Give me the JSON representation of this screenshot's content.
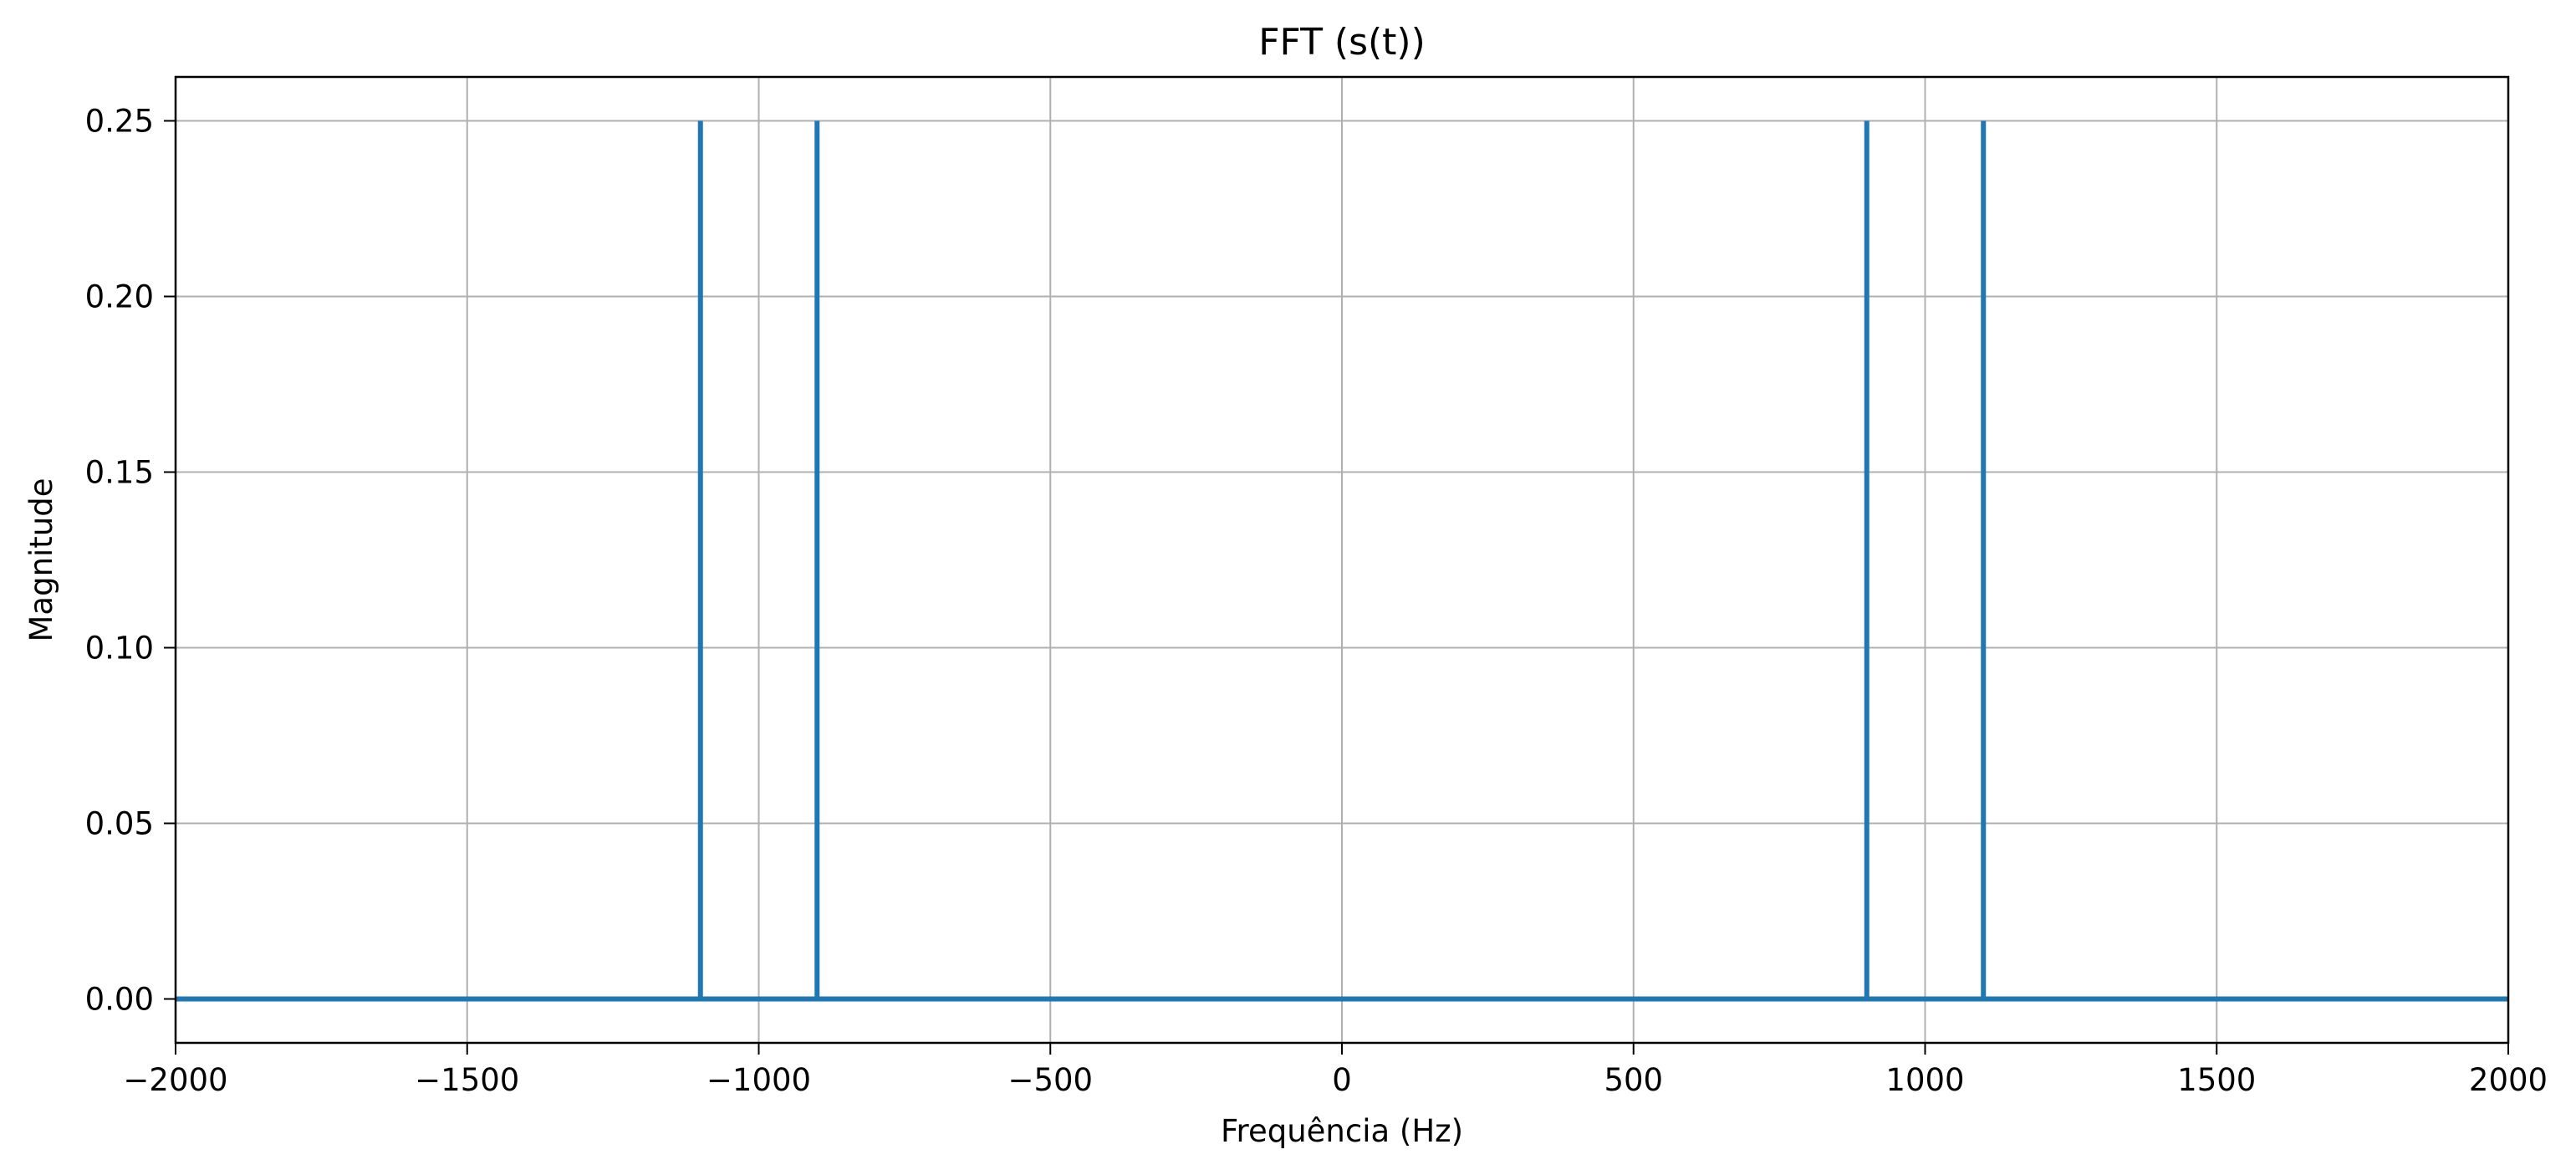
{
  "chart_data": {
    "type": "line",
    "title": "FFT (s(t))",
    "xlabel": "Frequência (Hz)",
    "ylabel": "Magnitude",
    "xlim": [
      -2000,
      2000
    ],
    "ylim": [
      -0.0125,
      0.2625
    ],
    "xticks": [
      -2000,
      -1500,
      -1000,
      -500,
      0,
      500,
      1000,
      1500,
      2000
    ],
    "xtick_labels": [
      "−2000",
      "−1500",
      "−1000",
      "−500",
      "0",
      "500",
      "1000",
      "1500",
      "2000"
    ],
    "yticks": [
      0.0,
      0.05,
      0.1,
      0.15,
      0.2,
      0.25
    ],
    "ytick_labels": [
      "0.00",
      "0.05",
      "0.10",
      "0.15",
      "0.20",
      "0.25"
    ],
    "grid": true,
    "colors": {
      "series": "#1f77b4",
      "grid": "#b0b0b0",
      "axes": "#000000"
    },
    "series": [
      {
        "x": [
          -2000,
          -1100,
          -1100,
          -1100,
          -900,
          -900,
          -900,
          900,
          900,
          900,
          1100,
          1100,
          1100,
          2000
        ],
        "y": [
          0,
          0,
          0.25,
          0,
          0,
          0.25,
          0,
          0,
          0.25,
          0,
          0,
          0.25,
          0,
          0
        ]
      }
    ]
  }
}
